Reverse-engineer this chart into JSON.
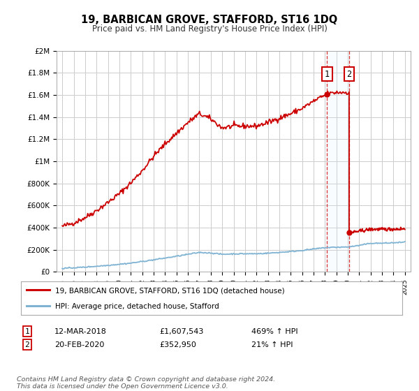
{
  "title": "19, BARBICAN GROVE, STAFFORD, ST16 1DQ",
  "subtitle": "Price paid vs. HM Land Registry's House Price Index (HPI)",
  "ylim": [
    0,
    2000000
  ],
  "xlim": [
    1994.5,
    2025.5
  ],
  "yticks": [
    0,
    200000,
    400000,
    600000,
    800000,
    1000000,
    1200000,
    1400000,
    1600000,
    1800000,
    2000000
  ],
  "ytick_labels": [
    "£0",
    "£200K",
    "£400K",
    "£600K",
    "£800K",
    "£1M",
    "£1.2M",
    "£1.4M",
    "£1.6M",
    "£1.8M",
    "£2M"
  ],
  "xtick_years": [
    1995,
    1996,
    1997,
    1998,
    1999,
    2000,
    2001,
    2002,
    2003,
    2004,
    2005,
    2006,
    2007,
    2008,
    2009,
    2010,
    2011,
    2012,
    2013,
    2014,
    2015,
    2016,
    2017,
    2018,
    2019,
    2020,
    2021,
    2022,
    2023,
    2024,
    2025
  ],
  "transaction1_x": 2018.19,
  "transaction1_y": 1607543,
  "transaction1_label": "1",
  "transaction1_date": "12-MAR-2018",
  "transaction1_price": "£1,607,543",
  "transaction1_hpi": "469% ↑ HPI",
  "transaction2_x": 2020.12,
  "transaction2_y": 352950,
  "transaction2_label": "2",
  "transaction2_date": "20-FEB-2020",
  "transaction2_price": "£352,950",
  "transaction2_hpi": "21% ↑ HPI",
  "legend_line1": "19, BARBICAN GROVE, STAFFORD, ST16 1DQ (detached house)",
  "legend_line2": "HPI: Average price, detached house, Stafford",
  "footnote": "Contains HM Land Registry data © Crown copyright and database right 2024.\nThis data is licensed under the Open Government Licence v3.0.",
  "red_color": "#cc0000",
  "blue_color": "#7fb3d3",
  "background_color": "#ffffff",
  "grid_color": "#cccccc",
  "marker_box_color": "#cc0000",
  "span_color": "#ddeeff"
}
